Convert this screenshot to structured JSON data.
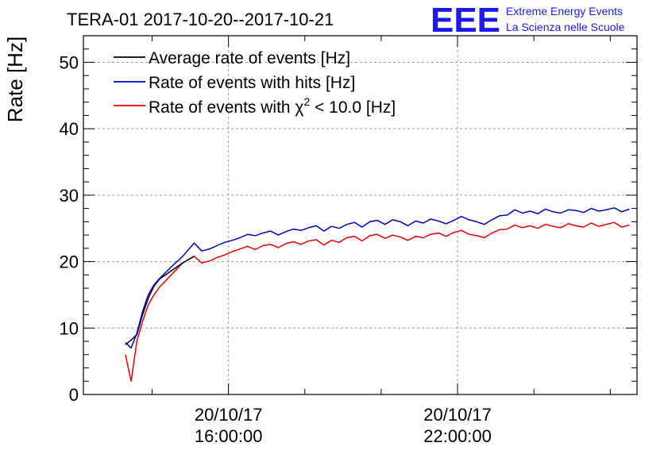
{
  "chart_data": {
    "type": "line",
    "title": "TERA-01 2017-10-20--2017-10-21",
    "ylabel": "Rate [Hz]",
    "xlabel": "",
    "ylim": [
      0,
      54
    ],
    "xlim_hours": [
      12.2,
      26.7
    ],
    "yticks": [
      0,
      10,
      20,
      30,
      40,
      50
    ],
    "yticklabels": [
      "0",
      "10",
      "20",
      "30",
      "40",
      "50"
    ],
    "xticks_hours": [
      16,
      22
    ],
    "xticklabels": [
      {
        "date": "20/10/17",
        "time": "16:00:00"
      },
      {
        "date": "20/10/17",
        "time": "22:00:00"
      }
    ],
    "grid": true,
    "legend_position": "top-left",
    "series": [
      {
        "name": "Average rate of events [Hz]",
        "legend_main": "Average rate of events [Hz]",
        "color": "#000000",
        "x": [
          13.3,
          13.45,
          13.6,
          13.75,
          13.9,
          14.05,
          14.2,
          14.5,
          14.8,
          15.1
        ],
        "y": [
          7.5,
          8.2,
          9.0,
          12.0,
          14.5,
          16.3,
          17.4,
          18.6,
          19.8,
          20.8
        ]
      },
      {
        "name": "Rate of events with hits [Hz]",
        "legend_main": "Rate of events with hits [Hz]",
        "color": "#0000cc",
        "x": [
          13.3,
          13.45,
          13.6,
          13.75,
          13.9,
          14.05,
          14.2,
          14.5,
          14.8,
          15.1,
          15.3,
          15.5,
          15.7,
          15.9,
          16.1,
          16.3,
          16.5,
          16.7,
          16.9,
          17.1,
          17.3,
          17.5,
          17.7,
          17.9,
          18.1,
          18.3,
          18.5,
          18.7,
          18.9,
          19.1,
          19.3,
          19.5,
          19.7,
          19.9,
          20.1,
          20.3,
          20.5,
          20.7,
          20.9,
          21.1,
          21.3,
          21.5,
          21.7,
          21.9,
          22.1,
          22.3,
          22.5,
          22.7,
          22.9,
          23.1,
          23.3,
          23.5,
          23.7,
          23.9,
          24.1,
          24.3,
          24.5,
          24.7,
          24.9,
          25.1,
          25.3,
          25.5,
          25.7,
          25.9,
          26.1,
          26.3,
          26.5
        ],
        "y": [
          7.8,
          7.0,
          9.2,
          12.5,
          15.0,
          16.5,
          17.5,
          19.2,
          20.8,
          22.8,
          21.6,
          21.9,
          22.4,
          22.9,
          23.2,
          23.6,
          24.1,
          23.9,
          24.3,
          24.6,
          24.0,
          24.5,
          24.9,
          24.7,
          25.1,
          25.4,
          24.6,
          25.3,
          25.0,
          25.6,
          25.9,
          25.2,
          26.0,
          26.2,
          25.6,
          26.3,
          26.0,
          25.4,
          26.1,
          25.8,
          26.4,
          26.1,
          25.7,
          26.2,
          26.8,
          26.3,
          26.0,
          25.6,
          26.3,
          26.9,
          27.0,
          27.8,
          27.3,
          27.6,
          27.2,
          27.9,
          27.5,
          27.3,
          27.8,
          27.7,
          27.4,
          28.0,
          27.6,
          27.8,
          28.1,
          27.5,
          27.9
        ]
      },
      {
        "name": "Rate of events with χ2 < 10.0 [Hz]",
        "legend_main": "Rate of events with χ",
        "legend_sup": "2",
        "legend_tail": " < 10.0 [Hz]",
        "color": "#ee0000",
        "x": [
          13.3,
          13.45,
          13.6,
          13.75,
          13.9,
          14.05,
          14.2,
          14.5,
          14.8,
          15.1,
          15.3,
          15.5,
          15.7,
          15.9,
          16.1,
          16.3,
          16.5,
          16.7,
          16.9,
          17.1,
          17.3,
          17.5,
          17.7,
          17.9,
          18.1,
          18.3,
          18.5,
          18.7,
          18.9,
          19.1,
          19.3,
          19.5,
          19.7,
          19.9,
          20.1,
          20.3,
          20.5,
          20.7,
          20.9,
          21.1,
          21.3,
          21.5,
          21.7,
          21.9,
          22.1,
          22.3,
          22.5,
          22.7,
          22.9,
          23.1,
          23.3,
          23.5,
          23.7,
          23.9,
          24.1,
          24.3,
          24.5,
          24.7,
          24.9,
          25.1,
          25.3,
          25.5,
          25.7,
          25.9,
          26.1,
          26.3,
          26.5
        ],
        "y": [
          6.0,
          2.0,
          8.0,
          11.0,
          13.5,
          15.0,
          16.2,
          18.0,
          19.8,
          20.8,
          19.8,
          20.1,
          20.6,
          21.0,
          21.5,
          21.9,
          22.3,
          21.8,
          22.4,
          22.6,
          22.1,
          22.7,
          23.0,
          22.6,
          23.1,
          23.3,
          22.5,
          23.2,
          22.9,
          23.6,
          23.8,
          23.1,
          23.9,
          24.1,
          23.5,
          24.0,
          23.7,
          23.2,
          23.8,
          23.6,
          24.1,
          24.3,
          23.8,
          24.4,
          24.7,
          24.1,
          23.9,
          23.6,
          24.3,
          24.8,
          24.9,
          25.5,
          25.1,
          25.4,
          25.0,
          25.6,
          25.3,
          25.1,
          25.7,
          25.4,
          25.2,
          25.8,
          25.3,
          25.6,
          25.9,
          25.2,
          25.5
        ]
      }
    ]
  },
  "logo": {
    "letters": "EEE",
    "line1": "Extreme Energy Events",
    "line2": "La Scienza nelle Scuole",
    "color": "#1a1aee"
  }
}
